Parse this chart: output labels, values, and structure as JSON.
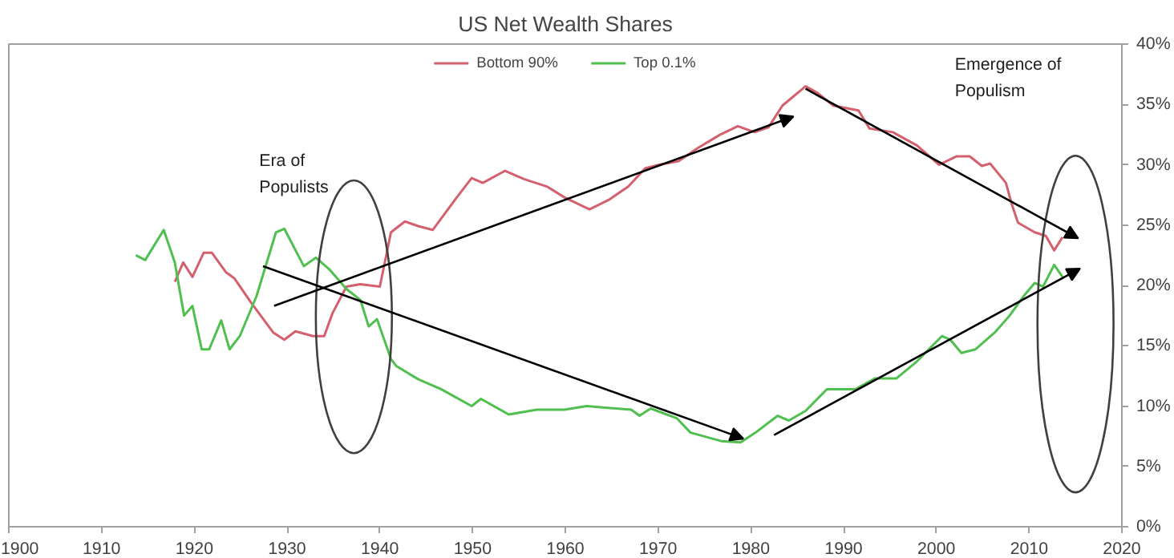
{
  "chart_data": {
    "type": "line",
    "title": "US Net Wealth Shares",
    "annotations": [
      "Era of\nPopulists",
      "Emergence of\nPopulism"
    ],
    "x": [
      1913.7,
      1914.7,
      1916.7,
      1917.9,
      1918.9,
      1919.8,
      1920.8,
      1921.6,
      1922.9,
      1923.8,
      1924.9,
      1926.7,
      1928.8,
      1929.7,
      1931.8,
      1933.1,
      1934.6,
      1936.4,
      1937.9,
      1938.8,
      1939.7,
      1941.2,
      1941.8,
      1944.2,
      1946.6,
      1949.9,
      1950.9,
      1953.9,
      1956.9,
      1959.9,
      1962.3,
      1967.1,
      1968.0,
      1969.2,
      1972.0,
      1973.5,
      1976.8,
      1978.9,
      1980.5,
      1982.9,
      1984.1,
      1985.9,
      1988.2,
      1991.3,
      1993.4,
      1995.7,
      1997.9,
      2000.6,
      2001.5,
      2002.7,
      2004.2,
      2006.3,
      2007.9,
      2009.4,
      2010.6,
      2011.5,
      2012.7,
      2013.6
    ],
    "series": [
      {
        "name": "Bottom 90%",
        "color": "#d4606e",
        "x": [
          1917.9,
          1918.8,
          1919.8,
          1921.0,
          1921.9,
          1923.4,
          1924.3,
          1926.1,
          1928.5,
          1929.7,
          1930.9,
          1932.8,
          1934.0,
          1934.9,
          1936.4,
          1937.9,
          1940.0,
          1941.2,
          1942.7,
          1944.2,
          1945.7,
          1948.3,
          1949.9,
          1951.1,
          1953.5,
          1955.6,
          1958.0,
          1959.9,
          1962.6,
          1964.7,
          1966.8,
          1968.6,
          1970.1,
          1972.2,
          1974.3,
          1976.7,
          1978.6,
          1980.4,
          1981.9,
          1983.4,
          1985.9,
          1987.1,
          1988.9,
          1991.6,
          1992.8,
          1995.3,
          1997.9,
          2000.3,
          2002.2,
          2003.6,
          2004.9,
          2005.8,
          2007.5,
          2008.1,
          2008.8,
          2010.6,
          2011.8,
          2012.7,
          2013.6
        ],
        "values": [
          20.3,
          21.9,
          20.7,
          22.7,
          22.7,
          21.1,
          20.6,
          18.6,
          16.1,
          15.5,
          16.2,
          15.8,
          15.8,
          17.7,
          19.9,
          20.1,
          19.9,
          24.4,
          25.3,
          24.9,
          24.6,
          27.3,
          28.9,
          28.5,
          29.5,
          28.8,
          28.2,
          27.3,
          26.3,
          27.1,
          28.2,
          29.7,
          30.0,
          30.3,
          31.4,
          32.5,
          33.2,
          32.7,
          33.1,
          34.9,
          36.5,
          36.0,
          34.9,
          34.5,
          33.0,
          32.7,
          31.6,
          30.0,
          30.7,
          30.7,
          29.9,
          30.1,
          28.5,
          26.8,
          25.2,
          24.4,
          24.1,
          22.9,
          24.0
        ]
      },
      {
        "name": "Top 0.1%",
        "color": "#4fbf4f",
        "values": [
          22.5,
          22.1,
          24.6,
          21.9,
          17.5,
          18.3,
          14.7,
          14.7,
          17.1,
          14.7,
          15.8,
          19.1,
          24.4,
          24.7,
          21.6,
          22.3,
          21.3,
          19.7,
          18.8,
          16.6,
          17.2,
          13.9,
          13.3,
          12.2,
          11.4,
          10.0,
          10.6,
          9.3,
          9.7,
          9.7,
          10.0,
          9.7,
          9.2,
          9.8,
          9.0,
          7.8,
          7.1,
          7.0,
          7.8,
          9.2,
          8.8,
          9.6,
          11.4,
          11.4,
          12.3,
          12.3,
          13.7,
          15.8,
          15.5,
          14.4,
          14.7,
          16.1,
          17.5,
          19.1,
          20.2,
          19.9,
          21.7,
          20.7
        ]
      }
    ],
    "xlim": [
      1900,
      2020
    ],
    "xticks": [
      1900,
      1910,
      1920,
      1930,
      1940,
      1950,
      1960,
      1970,
      1980,
      1990,
      2000,
      2010,
      2020
    ],
    "ylim": [
      0,
      40
    ],
    "yticks": [
      {
        "value": 0,
        "label": "0%"
      },
      {
        "value": 5,
        "label": "5%"
      },
      {
        "value": 10,
        "label": "10%"
      },
      {
        "value": 15,
        "label": "15%"
      },
      {
        "value": 20,
        "label": "20%"
      },
      {
        "value": 25,
        "label": "25%"
      },
      {
        "value": 30,
        "label": "30%"
      },
      {
        "value": 35,
        "label": "35%"
      },
      {
        "value": 40,
        "label": "40%"
      }
    ],
    "grid": false,
    "legend": "top",
    "marker": "none",
    "line_style": "solid"
  }
}
